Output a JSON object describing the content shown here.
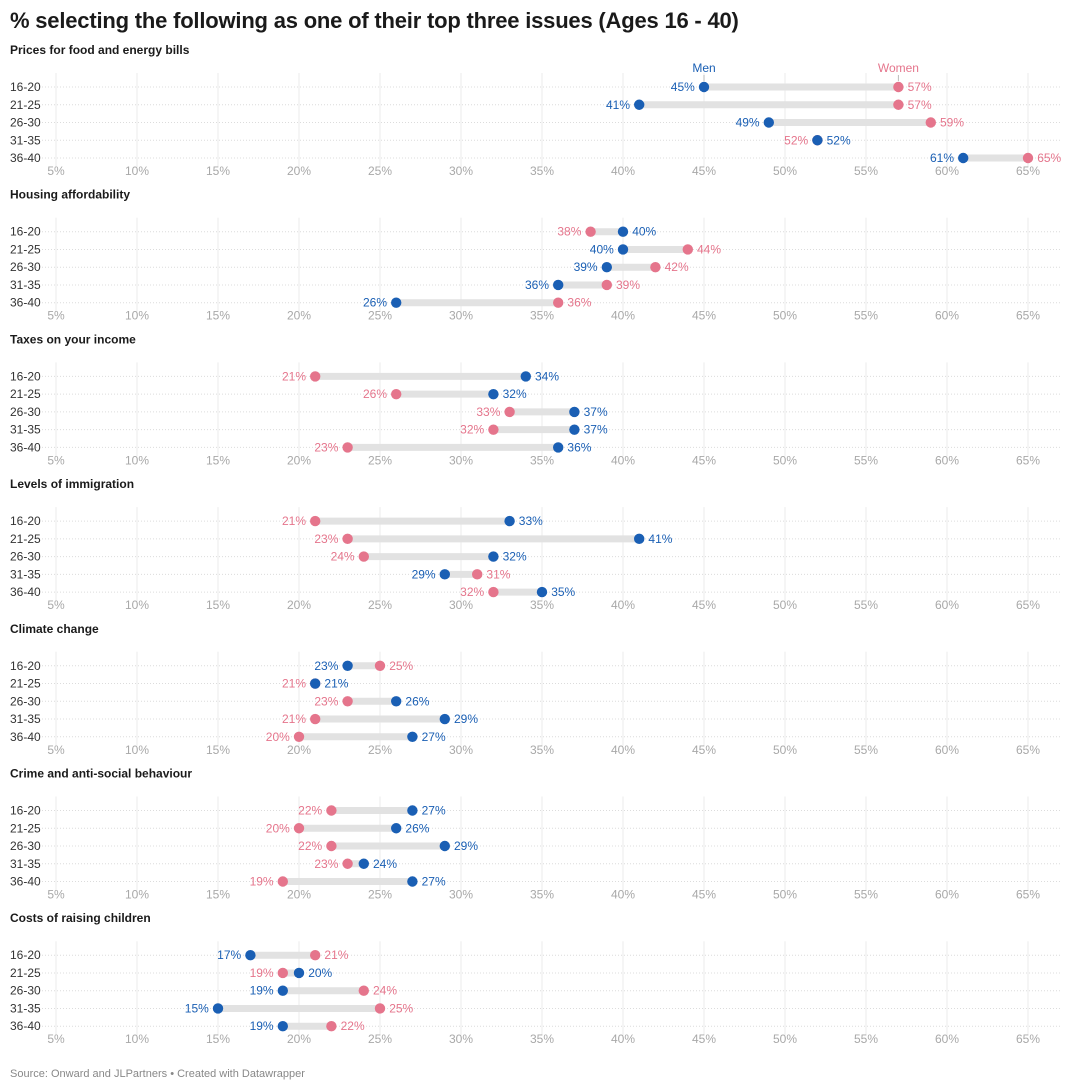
{
  "title": "% selecting the following as one of their top three issues (Ages 16 - 40)",
  "footer": "Source: Onward and JLPartners • Created with Datawrapper",
  "colors": {
    "men": "#1a5fb4",
    "women": "#e5758c",
    "connector": "#e2e2e2",
    "grid": "#ebebeb"
  },
  "chart_data": {
    "type": "range-dot",
    "title": "% selecting the following as one of their top three issues (Ages 16 - 40)",
    "xlim": [
      5,
      65
    ],
    "x_ticks": [
      5,
      10,
      15,
      20,
      25,
      30,
      35,
      40,
      45,
      50,
      55,
      60,
      65
    ],
    "x_tick_labels": [
      "5%",
      "10%",
      "15%",
      "20%",
      "25%",
      "30%",
      "35%",
      "40%",
      "45%",
      "50%",
      "55%",
      "60%",
      "65%"
    ],
    "categories": [
      "16-20",
      "21-25",
      "26-30",
      "31-35",
      "36-40"
    ],
    "legend": [
      {
        "name": "Men",
        "color": "#1a5fb4",
        "placement": "above-first-row"
      },
      {
        "name": "Women",
        "color": "#e5758c",
        "placement": "above-first-row"
      }
    ],
    "grid": true,
    "panels": [
      {
        "title": "Prices for food and energy bills",
        "men": [
          45,
          41,
          49,
          52,
          61
        ],
        "women": [
          57,
          57,
          59,
          52,
          65
        ]
      },
      {
        "title": "Housing affordability",
        "men": [
          40,
          40,
          39,
          36,
          26
        ],
        "women": [
          38,
          44,
          42,
          39,
          36
        ]
      },
      {
        "title": "Taxes on your income",
        "men": [
          34,
          32,
          37,
          37,
          36
        ],
        "women": [
          21,
          26,
          33,
          32,
          23
        ]
      },
      {
        "title": "Levels of immigration",
        "men": [
          33,
          41,
          32,
          29,
          35
        ],
        "women": [
          21,
          23,
          24,
          31,
          32
        ]
      },
      {
        "title": "Climate change",
        "men": [
          23,
          21,
          26,
          29,
          27
        ],
        "women": [
          25,
          21,
          23,
          21,
          20
        ]
      },
      {
        "title": "Crime and anti-social behaviour",
        "men": [
          27,
          26,
          29,
          24,
          27
        ],
        "women": [
          22,
          20,
          22,
          23,
          19
        ]
      },
      {
        "title": "Costs of raising children",
        "men": [
          17,
          20,
          19,
          15,
          19
        ],
        "women": [
          21,
          19,
          24,
          25,
          22
        ]
      }
    ]
  }
}
